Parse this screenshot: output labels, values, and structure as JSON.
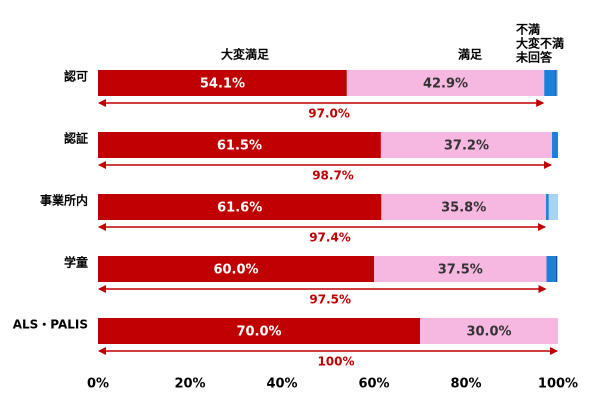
{
  "chart_data": {
    "type": "bar",
    "orientation": "horizontal",
    "stacked": true,
    "categories": [
      "認可",
      "認証",
      "事業所内",
      "学童",
      "ALS・PALIS"
    ],
    "series": [
      {
        "name": "大変満足",
        "color": "#c00000",
        "values": [
          54.1,
          61.5,
          61.6,
          60.0,
          70.0
        ],
        "value_labels": [
          "54.1%",
          "61.5%",
          "61.6%",
          "60.0%",
          "70.0%"
        ]
      },
      {
        "name": "満足",
        "color": "#f6b7e1",
        "values": [
          42.9,
          37.2,
          35.8,
          37.5,
          30.0
        ],
        "value_labels": [
          "42.9%",
          "37.2%",
          "35.8%",
          "37.5%",
          "30.0%"
        ]
      },
      {
        "name": "不満",
        "color": "#1e7fd8",
        "values": [
          2.4,
          1.3,
          0.6,
          2.0,
          0
        ]
      },
      {
        "name": "大変不満",
        "color": "#0a4a9c",
        "values": [
          0.3,
          0,
          0,
          0.3,
          0
        ]
      },
      {
        "name": "未回答",
        "color": "#a8d4f2",
        "values": [
          0.3,
          0,
          2.0,
          0.2,
          0
        ]
      }
    ],
    "totals": {
      "color": "#c00000",
      "values": [
        97.0,
        98.7,
        97.4,
        97.5,
        100
      ],
      "value_labels": [
        "97.0%",
        "98.7%",
        "97.4%",
        "97.5%",
        "100%"
      ]
    },
    "xlim": [
      0,
      100
    ],
    "xticks": [
      {
        "value": 0,
        "label": "0%"
      },
      {
        "value": 20,
        "label": "20%"
      },
      {
        "value": 40,
        "label": "40%"
      },
      {
        "value": 60,
        "label": "60%"
      },
      {
        "value": 80,
        "label": "80%"
      },
      {
        "value": 100,
        "label": "100%"
      }
    ]
  }
}
